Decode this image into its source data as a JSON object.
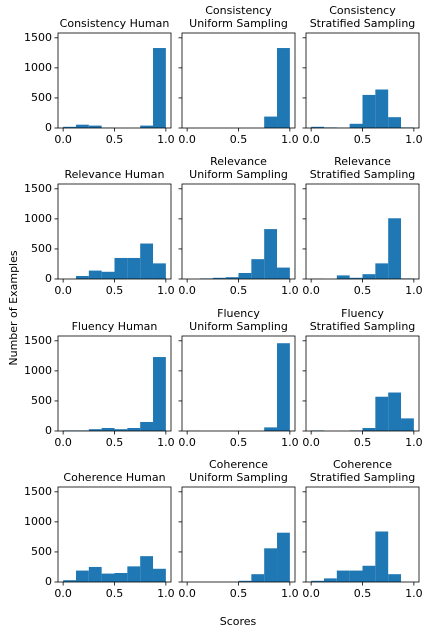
{
  "figure": {
    "ylabel": "Number of Examples",
    "xlabel": "Scores"
  },
  "chart_data": [
    {
      "type": "histogram",
      "title": [
        "Consistency Human"
      ],
      "bins": [
        0,
        0.125,
        0.25,
        0.375,
        0.5,
        0.625,
        0.75,
        0.875,
        1
      ],
      "values": [
        20,
        55,
        40,
        5,
        0,
        0,
        40,
        1330
      ],
      "color": "#1f77b4",
      "xlim": [
        -0.05,
        1.05
      ],
      "ylim": [
        0,
        1580
      ],
      "xticks": [
        {
          "value": 0,
          "label": "0.0"
        },
        {
          "value": 0.5,
          "label": "0.5"
        },
        {
          "value": 1,
          "label": "1.0"
        }
      ],
      "yticks": [
        0,
        500,
        1000,
        1500
      ],
      "show_ytick_labels": true
    },
    {
      "type": "histogram",
      "title": [
        "Consistency",
        "Uniform Sampling"
      ],
      "bins": [
        0,
        0.125,
        0.25,
        0.375,
        0.5,
        0.625,
        0.75,
        0.875,
        1
      ],
      "values": [
        0,
        0,
        0,
        0,
        0,
        0,
        190,
        1330
      ],
      "color": "#1f77b4",
      "xlim": [
        -0.05,
        1.05
      ],
      "ylim": [
        0,
        1580
      ],
      "xticks": [
        {
          "value": 0,
          "label": "0.0"
        },
        {
          "value": 0.5,
          "label": "0.5"
        },
        {
          "value": 1,
          "label": "1.0"
        }
      ],
      "yticks": [
        0,
        500,
        1000,
        1500
      ],
      "show_ytick_labels": false
    },
    {
      "type": "histogram",
      "title": [
        "Consistency",
        "Stratified Sampling"
      ],
      "bins": [
        0,
        0.125,
        0.25,
        0.375,
        0.5,
        0.625,
        0.75,
        0.875,
        1
      ],
      "values": [
        20,
        10,
        5,
        70,
        550,
        640,
        180,
        10
      ],
      "color": "#1f77b4",
      "xlim": [
        -0.05,
        1.05
      ],
      "ylim": [
        0,
        1580
      ],
      "xticks": [
        {
          "value": 0,
          "label": "0.0"
        },
        {
          "value": 0.5,
          "label": "0.5"
        },
        {
          "value": 1,
          "label": "1.0"
        }
      ],
      "yticks": [
        0,
        500,
        1000,
        1500
      ],
      "show_ytick_labels": false
    },
    {
      "type": "histogram",
      "title": [
        "Relevance Human"
      ],
      "bins": [
        0,
        0.125,
        0.25,
        0.375,
        0.5,
        0.625,
        0.75,
        0.875,
        1
      ],
      "values": [
        0,
        50,
        140,
        120,
        350,
        350,
        590,
        260
      ],
      "color": "#1f77b4",
      "xlim": [
        -0.05,
        1.05
      ],
      "ylim": [
        0,
        1580
      ],
      "xticks": [
        {
          "value": 0,
          "label": "0.0"
        },
        {
          "value": 0.5,
          "label": "0.5"
        },
        {
          "value": 1,
          "label": "1.0"
        }
      ],
      "yticks": [
        0,
        500,
        1000,
        1500
      ],
      "show_ytick_labels": true
    },
    {
      "type": "histogram",
      "title": [
        "Relevance",
        "Uniform Sampling"
      ],
      "bins": [
        0,
        0.125,
        0.25,
        0.375,
        0.5,
        0.625,
        0.75,
        0.875,
        1
      ],
      "values": [
        0,
        10,
        20,
        30,
        100,
        330,
        830,
        190
      ],
      "color": "#1f77b4",
      "xlim": [
        -0.05,
        1.05
      ],
      "ylim": [
        0,
        1580
      ],
      "xticks": [
        {
          "value": 0,
          "label": "0.0"
        },
        {
          "value": 0.5,
          "label": "0.5"
        },
        {
          "value": 1,
          "label": "1.0"
        }
      ],
      "yticks": [
        0,
        500,
        1000,
        1500
      ],
      "show_ytick_labels": false
    },
    {
      "type": "histogram",
      "title": [
        "Relevance",
        "Stratified Sampling"
      ],
      "bins": [
        0,
        0.125,
        0.25,
        0.375,
        0.5,
        0.625,
        0.75,
        0.875,
        1
      ],
      "values": [
        5,
        0,
        60,
        20,
        80,
        260,
        1010,
        10
      ],
      "color": "#1f77b4",
      "xlim": [
        -0.05,
        1.05
      ],
      "ylim": [
        0,
        1580
      ],
      "xticks": [
        {
          "value": 0,
          "label": "0.0"
        },
        {
          "value": 0.5,
          "label": "0.5"
        },
        {
          "value": 1,
          "label": "1.0"
        }
      ],
      "yticks": [
        0,
        500,
        1000,
        1500
      ],
      "show_ytick_labels": false
    },
    {
      "type": "histogram",
      "title": [
        "Fluency Human"
      ],
      "bins": [
        0,
        0.125,
        0.25,
        0.375,
        0.5,
        0.625,
        0.75,
        0.875,
        1
      ],
      "values": [
        10,
        10,
        30,
        50,
        30,
        50,
        150,
        1230
      ],
      "color": "#1f77b4",
      "xlim": [
        -0.05,
        1.05
      ],
      "ylim": [
        0,
        1580
      ],
      "xticks": [
        {
          "value": 0,
          "label": "0.0"
        },
        {
          "value": 0.5,
          "label": "0.5"
        },
        {
          "value": 1,
          "label": "1.0"
        }
      ],
      "yticks": [
        0,
        500,
        1000,
        1500
      ],
      "show_ytick_labels": true
    },
    {
      "type": "histogram",
      "title": [
        "Fluency",
        "Uniform Sampling"
      ],
      "bins": [
        0,
        0.125,
        0.25,
        0.375,
        0.5,
        0.625,
        0.75,
        0.875,
        1
      ],
      "values": [
        5,
        0,
        0,
        0,
        0,
        0,
        60,
        1460
      ],
      "color": "#1f77b4",
      "xlim": [
        -0.05,
        1.05
      ],
      "ylim": [
        0,
        1580
      ],
      "xticks": [
        {
          "value": 0,
          "label": "0.0"
        },
        {
          "value": 0.5,
          "label": "0.5"
        },
        {
          "value": 1,
          "label": "1.0"
        }
      ],
      "yticks": [
        0,
        500,
        1000,
        1500
      ],
      "show_ytick_labels": false
    },
    {
      "type": "histogram",
      "title": [
        "Fluency",
        "Stratified Sampling"
      ],
      "bins": [
        0,
        0.125,
        0.25,
        0.375,
        0.5,
        0.625,
        0.75,
        0.875,
        1
      ],
      "values": [
        10,
        0,
        0,
        10,
        50,
        570,
        640,
        210
      ],
      "color": "#1f77b4",
      "xlim": [
        -0.05,
        1.05
      ],
      "ylim": [
        0,
        1580
      ],
      "xticks": [
        {
          "value": 0,
          "label": "0.0"
        },
        {
          "value": 0.5,
          "label": "0.5"
        },
        {
          "value": 1,
          "label": "1.0"
        }
      ],
      "yticks": [
        0,
        500,
        1000,
        1500
      ],
      "show_ytick_labels": false
    },
    {
      "type": "histogram",
      "title": [
        "Coherence Human"
      ],
      "bins": [
        0,
        0.125,
        0.25,
        0.375,
        0.5,
        0.625,
        0.75,
        0.875,
        1
      ],
      "values": [
        30,
        190,
        250,
        140,
        150,
        260,
        430,
        220
      ],
      "color": "#1f77b4",
      "xlim": [
        -0.05,
        1.05
      ],
      "ylim": [
        0,
        1580
      ],
      "xticks": [
        {
          "value": 0,
          "label": "0.0"
        },
        {
          "value": 0.5,
          "label": "0.5"
        },
        {
          "value": 1,
          "label": "1.0"
        }
      ],
      "yticks": [
        0,
        500,
        1000,
        1500
      ],
      "show_ytick_labels": true
    },
    {
      "type": "histogram",
      "title": [
        "Coherence",
        "Uniform Sampling"
      ],
      "bins": [
        0,
        0.125,
        0.25,
        0.375,
        0.5,
        0.625,
        0.75,
        0.875,
        1
      ],
      "values": [
        0,
        0,
        0,
        0,
        20,
        130,
        560,
        820
      ],
      "color": "#1f77b4",
      "xlim": [
        -0.05,
        1.05
      ],
      "ylim": [
        0,
        1580
      ],
      "xticks": [
        {
          "value": 0,
          "label": "0.0"
        },
        {
          "value": 0.5,
          "label": "0.5"
        },
        {
          "value": 1,
          "label": "1.0"
        }
      ],
      "yticks": [
        0,
        500,
        1000,
        1500
      ],
      "show_ytick_labels": false
    },
    {
      "type": "histogram",
      "title": [
        "Coherence",
        "Stratified Sampling"
      ],
      "bins": [
        0,
        0.125,
        0.25,
        0.375,
        0.5,
        0.625,
        0.75,
        0.875,
        1
      ],
      "values": [
        20,
        60,
        190,
        190,
        270,
        840,
        130,
        0
      ],
      "color": "#1f77b4",
      "xlim": [
        -0.05,
        1.05
      ],
      "ylim": [
        0,
        1580
      ],
      "xticks": [
        {
          "value": 0,
          "label": "0.0"
        },
        {
          "value": 0.5,
          "label": "0.5"
        },
        {
          "value": 1,
          "label": "1.0"
        }
      ],
      "yticks": [
        0,
        500,
        1000,
        1500
      ],
      "show_ytick_labels": false
    }
  ]
}
